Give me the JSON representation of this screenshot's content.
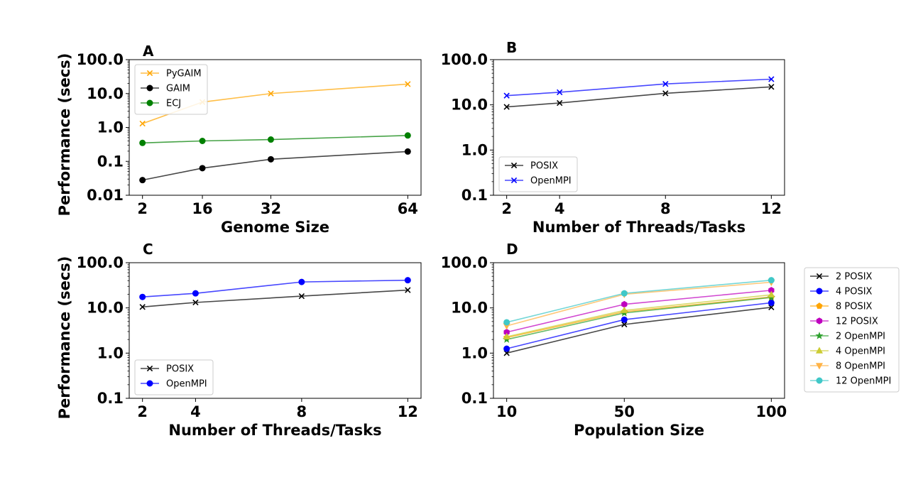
{
  "chart_data": [
    {
      "panel": "A",
      "type": "line",
      "xlabel": "Genome Size",
      "ylabel": "Performance (secs)",
      "x": [
        2,
        16,
        32,
        64
      ],
      "xticks": [
        "2",
        "16",
        "32",
        "64"
      ],
      "yscale": "log",
      "ylim": [
        0.01,
        100
      ],
      "yticks": [
        "0.01",
        "0.1",
        "1.0",
        "10.0",
        "100.0"
      ],
      "legend": "top-left",
      "series": [
        {
          "name": "PyGAIM",
          "color": "#ffa500",
          "marker": "x",
          "values": [
            1.3,
            5.6,
            10.0,
            19.0
          ]
        },
        {
          "name": "GAIM",
          "color": "#000000",
          "marker": "o",
          "values": [
            0.028,
            0.063,
            0.115,
            0.195
          ]
        },
        {
          "name": "ECJ",
          "color": "#008000",
          "marker": "o",
          "values": [
            0.35,
            0.4,
            0.44,
            0.58
          ]
        }
      ]
    },
    {
      "panel": "B",
      "type": "line",
      "xlabel": "Number of Threads/Tasks",
      "ylabel": "",
      "x": [
        2,
        4,
        8,
        12
      ],
      "xticks": [
        "2",
        "4",
        "8",
        "12"
      ],
      "yscale": "log",
      "ylim": [
        0.1,
        100
      ],
      "yticks": [
        "0.1",
        "1.0",
        "10.0",
        "100.0"
      ],
      "legend": "bottom-left",
      "series": [
        {
          "name": "POSIX",
          "color": "#000000",
          "marker": "x",
          "values": [
            9.0,
            11.0,
            18.0,
            25.0
          ]
        },
        {
          "name": "OpenMPI",
          "color": "#0000ff",
          "marker": "x",
          "values": [
            16.0,
            19.0,
            29.0,
            37.0
          ]
        }
      ]
    },
    {
      "panel": "C",
      "type": "line",
      "xlabel": "Number of Threads/Tasks",
      "ylabel": "Performance (secs)",
      "x": [
        2,
        4,
        8,
        12
      ],
      "xticks": [
        "2",
        "4",
        "8",
        "12"
      ],
      "yscale": "log",
      "ylim": [
        0.1,
        100
      ],
      "yticks": [
        "0.1",
        "1.0",
        "10.0",
        "100.0"
      ],
      "legend": "bottom-left",
      "series": [
        {
          "name": "POSIX",
          "color": "#000000",
          "marker": "x",
          "values": [
            10.5,
            13.2,
            18.2,
            24.8
          ]
        },
        {
          "name": "OpenMPI",
          "color": "#0000ff",
          "marker": "o",
          "values": [
            17.5,
            21.0,
            37.5,
            41.0
          ]
        }
      ]
    },
    {
      "panel": "D",
      "type": "line",
      "xlabel": "Population Size",
      "ylabel": "",
      "x": [
        10,
        50,
        100
      ],
      "xticks": [
        "10",
        "50",
        "100"
      ],
      "yscale": "log",
      "ylim": [
        0.1,
        100
      ],
      "yticks": [
        "0.1",
        "1.0",
        "10.0",
        "100.0"
      ],
      "legend": "outside-right",
      "series": [
        {
          "name": "2 POSIX",
          "color": "#000000",
          "marker": "x",
          "values": [
            1.0,
            4.3,
            10.3
          ]
        },
        {
          "name": "4 POSIX",
          "color": "#0000ff",
          "marker": "o",
          "values": [
            1.25,
            5.5,
            13.0
          ]
        },
        {
          "name": "8 POSIX",
          "color": "#ffa500",
          "marker": "p",
          "values": [
            2.2,
            8.2,
            17.5
          ]
        },
        {
          "name": "12 POSIX",
          "color": "#bf00bf",
          "marker": "h",
          "values": [
            2.9,
            12.0,
            24.5
          ]
        },
        {
          "name": "2 OpenMPI",
          "color": "#2ca02c",
          "marker": "*",
          "values": [
            2.0,
            7.7,
            17.0
          ]
        },
        {
          "name": "4 OpenMPI",
          "color": "#cccc33",
          "marker": "^",
          "values": [
            2.3,
            8.8,
            19.5
          ]
        },
        {
          "name": "8 OpenMPI",
          "color": "#ffb347",
          "marker": "v",
          "values": [
            4.0,
            20.0,
            37.0
          ]
        },
        {
          "name": "12 OpenMPI",
          "color": "#40c8c8",
          "marker": "o",
          "values": [
            4.8,
            21.0,
            41.0
          ]
        }
      ]
    }
  ]
}
